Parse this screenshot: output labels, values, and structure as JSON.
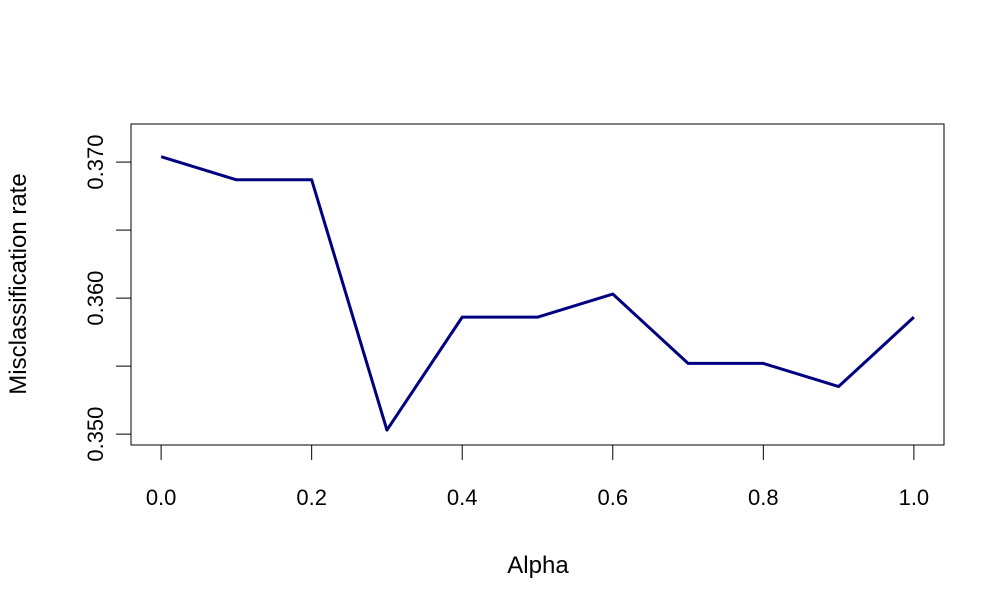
{
  "chart_data": {
    "type": "line",
    "title": "",
    "xlabel": "Alpha",
    "ylabel": "Misclassification rate",
    "x": [
      0.0,
      0.1,
      0.2,
      0.3,
      0.4,
      0.5,
      0.6,
      0.7,
      0.8,
      0.9,
      1.0
    ],
    "series": [
      {
        "values": [
          0.3704,
          0.3687,
          0.3687,
          0.3503,
          0.3586,
          0.3586,
          0.3603,
          0.3552,
          0.3552,
          0.3535,
          0.3586
        ],
        "color": "#000080"
      }
    ],
    "xticks": [
      0.0,
      0.2,
      0.4,
      0.6,
      0.8,
      1.0
    ],
    "xtick_labels": [
      "0.0",
      "0.2",
      "0.4",
      "0.6",
      "0.8",
      "1.0"
    ],
    "yticks": [
      0.35,
      0.355,
      0.36,
      0.365,
      0.37
    ],
    "ytick_labels": [
      "0.350",
      "",
      "0.360",
      "",
      "0.370"
    ],
    "xlim": [
      -0.04,
      1.04
    ],
    "ylim": [
      0.3492,
      0.3728
    ],
    "grid": false,
    "legend": "none"
  }
}
